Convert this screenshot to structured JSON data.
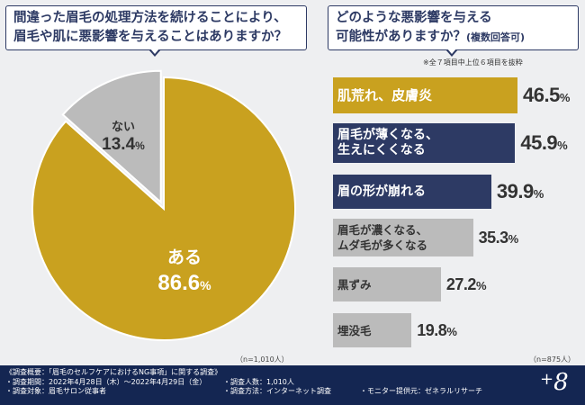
{
  "left_question": {
    "line1": "間違った眉毛の処理方法を続けることにより、",
    "line2": "眉毛や肌に悪影響を与えることはありますか？"
  },
  "right_question": {
    "line1": "どのような悪影響を与える",
    "line2": "可能性がありますか？",
    "line2_sub": "(複数回答可)"
  },
  "right_note": "※全７項目中上位６項目を抜粋",
  "left_n": "（n=1,010人）",
  "right_n": "（n=875人）",
  "colors": {
    "accent": "#c9a11f",
    "navy": "#2d3a64",
    "gray": "#bbbbbb"
  },
  "chart_data": [
    {
      "type": "pie",
      "categories": [
        "ある",
        "ない"
      ],
      "values": [
        86.6,
        13.4
      ],
      "value_labels": [
        "86.6",
        "13.4"
      ],
      "unit": "%",
      "colors": [
        "#c9a11f",
        "#bbbbbb"
      ]
    },
    {
      "type": "bar",
      "orientation": "horizontal",
      "categories": [
        "肌荒れ、皮膚炎",
        "眉毛が薄くなる、\n生えにくくなる",
        "眉の形が崩れる",
        "眉毛が濃くなる、\nムダ毛が多くなる",
        "黒ずみ",
        "埋没毛"
      ],
      "values": [
        46.5,
        45.9,
        39.9,
        35.3,
        27.2,
        19.8
      ],
      "value_labels": [
        "46.5",
        "45.9",
        "39.9",
        "35.3",
        "27.2",
        "19.8"
      ],
      "unit": "%",
      "bar_colors": [
        "#c9a11f",
        "#2d3a64",
        "#2d3a64",
        "#bbbbbb",
        "#bbbbbb",
        "#bbbbbb"
      ],
      "label_colors": [
        "#ffffff",
        "#ffffff",
        "#ffffff",
        "#333333",
        "#333333",
        "#333333"
      ]
    }
  ],
  "footer": {
    "title": "《調査概要：「眉毛のセルフケアにおけるNG事項」に関する調査》",
    "period": "・調査期間：2022年4月28日（木）〜2022年4月29日（金）",
    "target": "・調査対象：眉毛サロン従事者",
    "count": "・調査人数：1,010人",
    "method": "・調査方法：インターネット調査",
    "provider": "・モニター提供元：ゼネラルリサーチ"
  },
  "logo": {
    "plus": "+",
    "eight": "8"
  }
}
